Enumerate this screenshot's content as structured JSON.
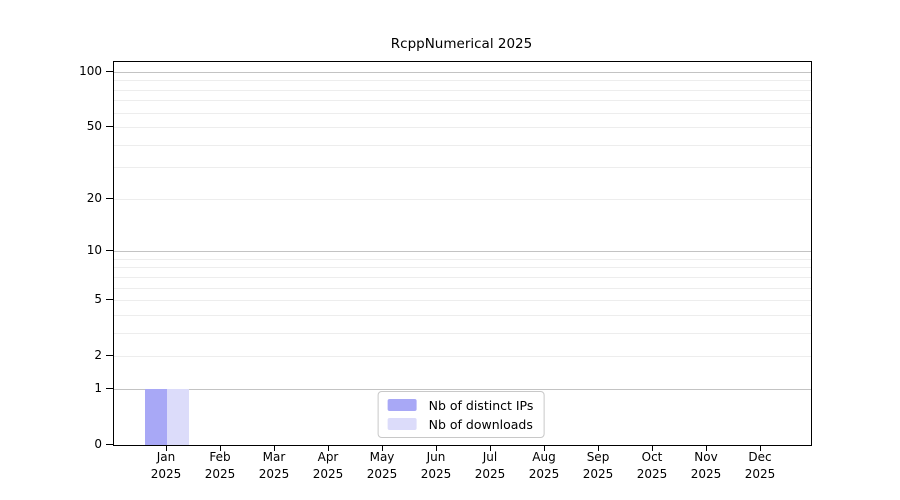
{
  "chart_data": {
    "type": "bar",
    "title": "RcppNumerical 2025",
    "x_axis": {
      "categories": [
        "Jan",
        "Feb",
        "Mar",
        "Apr",
        "May",
        "Jun",
        "Jul",
        "Aug",
        "Sep",
        "Oct",
        "Nov",
        "Dec"
      ],
      "year_label": "2025"
    },
    "y_axis": {
      "scale": "log1p",
      "tick_labels": [
        0,
        1,
        2,
        5,
        10,
        20,
        50,
        100
      ],
      "major_gridlines": [
        1,
        10,
        100
      ],
      "minor_gridlines": [
        2,
        3,
        4,
        5,
        6,
        7,
        8,
        9,
        20,
        30,
        40,
        50,
        60,
        70,
        80,
        90
      ],
      "ylim": [
        0,
        113
      ],
      "grid": true
    },
    "series": [
      {
        "name": "Nb of distinct IPs",
        "color": "#a8a8f6",
        "values": [
          1,
          0,
          0,
          0,
          0,
          0,
          0,
          0,
          0,
          0,
          0,
          0
        ]
      },
      {
        "name": "Nb of downloads",
        "color": "#dcdcfa",
        "values": [
          1,
          0,
          0,
          0,
          0,
          0,
          0,
          0,
          0,
          0,
          0,
          0
        ]
      }
    ],
    "legend": {
      "position": "bottom-center",
      "entries": [
        "Nb of distinct IPs",
        "Nb of downloads"
      ]
    }
  },
  "colors": {
    "background": "#ffffff",
    "axis": "#000000",
    "text": "#000000",
    "major_gridline": "#c3c3c3",
    "minor_gridline": "#ededed",
    "legend_border": "#c8c8c8",
    "legend_background": "#ffffff",
    "bar_distinct_ips": "#a8a8f6",
    "bar_downloads": "#dcdcfa"
  }
}
